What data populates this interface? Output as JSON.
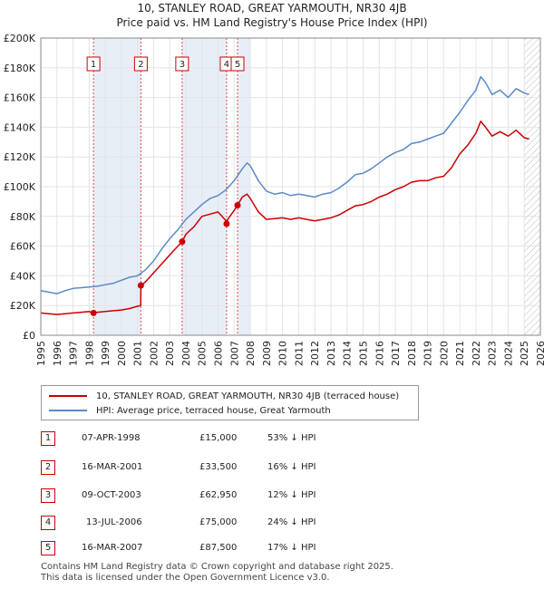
{
  "header": {
    "title_line1": "10, STANLEY ROAD, GREAT YARMOUTH, NR30 4JB",
    "title_line2": "Price paid vs. HM Land Registry's House Price Index (HPI)"
  },
  "colors": {
    "price_line": "#cc0000",
    "hpi_line": "#5a8ac6",
    "shade": "#e8eef8",
    "marker_box": "#cc0000"
  },
  "chart_data": {
    "type": "line",
    "title": "Price paid vs. HM Land Registry's House Price Index (HPI)",
    "xlabel": "",
    "ylabel": "",
    "xlim": [
      1995,
      2026
    ],
    "ylim": [
      0,
      200000
    ],
    "x_ticks": [
      "1995",
      "1996",
      "1997",
      "1998",
      "1999",
      "2000",
      "2001",
      "2002",
      "2003",
      "2004",
      "2005",
      "2006",
      "2007",
      "2008",
      "2009",
      "2010",
      "2011",
      "2012",
      "2013",
      "2014",
      "2015",
      "2016",
      "2017",
      "2018",
      "2019",
      "2020",
      "2021",
      "2022",
      "2023",
      "2024",
      "2025",
      "2026"
    ],
    "y_ticks": [
      {
        "value": 0,
        "label": "£0"
      },
      {
        "value": 20000,
        "label": "£20K"
      },
      {
        "value": 40000,
        "label": "£40K"
      },
      {
        "value": 60000,
        "label": "£60K"
      },
      {
        "value": 80000,
        "label": "£80K"
      },
      {
        "value": 100000,
        "label": "£100K"
      },
      {
        "value": 120000,
        "label": "£120K"
      },
      {
        "value": 140000,
        "label": "£140K"
      },
      {
        "value": 160000,
        "label": "£160K"
      },
      {
        "value": 180000,
        "label": "£180K"
      },
      {
        "value": 200000,
        "label": "£200K"
      }
    ],
    "shaded_spans": [
      [
        1998.27,
        2001.21
      ],
      [
        2003.77,
        2006.53
      ],
      [
        2007.21,
        2008.0
      ]
    ],
    "hatched_span": [
      2025.0,
      2026.0
    ],
    "series": [
      {
        "name": "HPI: Average price, terraced house, Great Yarmouth",
        "color": "#5a8ac6",
        "x": [
          1995.0,
          1995.5,
          1996.0,
          1996.5,
          1997.0,
          1997.5,
          1998.0,
          1998.5,
          1999.0,
          1999.5,
          2000.0,
          2000.5,
          2001.0,
          2001.5,
          2002.0,
          2002.5,
          2003.0,
          2003.5,
          2004.0,
          2004.5,
          2005.0,
          2005.5,
          2006.0,
          2006.5,
          2007.0,
          2007.5,
          2007.8,
          2008.0,
          2008.5,
          2009.0,
          2009.5,
          2010.0,
          2010.5,
          2011.0,
          2011.5,
          2012.0,
          2012.5,
          2013.0,
          2013.5,
          2014.0,
          2014.5,
          2015.0,
          2015.5,
          2016.0,
          2016.5,
          2017.0,
          2017.5,
          2018.0,
          2018.5,
          2019.0,
          2019.5,
          2020.0,
          2020.5,
          2021.0,
          2021.5,
          2022.0,
          2022.3,
          2022.6,
          2023.0,
          2023.5,
          2024.0,
          2024.5,
          2025.0,
          2025.3
        ],
        "values": [
          30000,
          29000,
          28000,
          30000,
          31500,
          32000,
          32500,
          33000,
          34000,
          35000,
          37000,
          39000,
          40000,
          44000,
          50000,
          58000,
          65000,
          71000,
          78000,
          83000,
          88000,
          92000,
          94000,
          98000,
          104000,
          112000,
          116000,
          114000,
          104000,
          97000,
          95000,
          96000,
          94000,
          95000,
          94000,
          93000,
          95000,
          96000,
          99000,
          103000,
          108000,
          109000,
          112000,
          116000,
          120000,
          123000,
          125000,
          129000,
          130000,
          132000,
          134000,
          136000,
          143000,
          150000,
          158000,
          165000,
          174000,
          170000,
          162000,
          165000,
          160000,
          166000,
          163000,
          162000
        ]
      },
      {
        "name": "10, STANLEY ROAD, GREAT YARMOUTH, NR30 4JB (terraced house)",
        "color": "#cc0000",
        "x": [
          1995.0,
          1995.5,
          1996.0,
          1996.5,
          1997.0,
          1997.5,
          1998.0,
          1998.27,
          1998.5,
          1999.0,
          1999.5,
          2000.0,
          2000.5,
          2001.0,
          2001.2,
          2001.21,
          2001.5,
          2002.0,
          2002.5,
          2003.0,
          2003.5,
          2003.77,
          2004.0,
          2004.5,
          2005.0,
          2005.5,
          2006.0,
          2006.5,
          2006.53,
          2006.6,
          2007.0,
          2007.21,
          2007.5,
          2007.8,
          2008.0,
          2008.5,
          2009.0,
          2009.5,
          2010.0,
          2010.5,
          2011.0,
          2011.5,
          2012.0,
          2012.5,
          2013.0,
          2013.5,
          2014.0,
          2014.5,
          2015.0,
          2015.5,
          2016.0,
          2016.5,
          2017.0,
          2017.5,
          2018.0,
          2018.5,
          2019.0,
          2019.5,
          2020.0,
          2020.5,
          2021.0,
          2021.5,
          2022.0,
          2022.3,
          2022.6,
          2023.0,
          2023.5,
          2024.0,
          2024.5,
          2025.0,
          2025.3
        ],
        "values": [
          15000,
          14500,
          14000,
          14500,
          15000,
          15500,
          16000,
          15000,
          15500,
          16000,
          16500,
          17000,
          18000,
          19500,
          20000,
          33500,
          36000,
          42000,
          48000,
          54000,
          60000,
          62950,
          68000,
          73000,
          80000,
          81500,
          83000,
          77000,
          75000,
          78000,
          84000,
          87500,
          93000,
          95000,
          92000,
          83000,
          78000,
          78500,
          79000,
          78000,
          79000,
          78000,
          77000,
          78000,
          79000,
          81000,
          84000,
          87000,
          88000,
          90000,
          93000,
          95000,
          98000,
          100000,
          103000,
          104000,
          104000,
          106000,
          107000,
          113000,
          122000,
          128000,
          136000,
          144000,
          140000,
          134000,
          137000,
          134000,
          138000,
          133000,
          132000
        ]
      }
    ],
    "sales": [
      {
        "n": "1",
        "x": 1998.27,
        "value": 15000
      },
      {
        "n": "2",
        "x": 2001.21,
        "value": 33500
      },
      {
        "n": "3",
        "x": 2003.77,
        "value": 62950
      },
      {
        "n": "4",
        "x": 2006.53,
        "value": 75000
      },
      {
        "n": "5",
        "x": 2007.21,
        "value": 87500
      }
    ]
  },
  "legend": {
    "items": [
      {
        "label": "10, STANLEY ROAD, GREAT YARMOUTH, NR30 4JB (terraced house)"
      },
      {
        "label": "HPI: Average price, terraced house, Great Yarmouth"
      }
    ]
  },
  "table": {
    "rows": [
      {
        "n": "1",
        "date": "07-APR-1998",
        "price": "£15,000",
        "hpi": "53% ↓ HPI"
      },
      {
        "n": "2",
        "date": "16-MAR-2001",
        "price": "£33,500",
        "hpi": "16% ↓ HPI"
      },
      {
        "n": "3",
        "date": "09-OCT-2003",
        "price": "£62,950",
        "hpi": "12% ↓ HPI"
      },
      {
        "n": "4",
        "date": "13-JUL-2006",
        "price": "£75,000",
        "hpi": "24% ↓ HPI"
      },
      {
        "n": "5",
        "date": "16-MAR-2007",
        "price": "£87,500",
        "hpi": "17% ↓ HPI"
      }
    ]
  },
  "footer": {
    "line1": "Contains HM Land Registry data © Crown copyright and database right 2025.",
    "line2": "This data is licensed under the Open Government Licence v3.0."
  }
}
